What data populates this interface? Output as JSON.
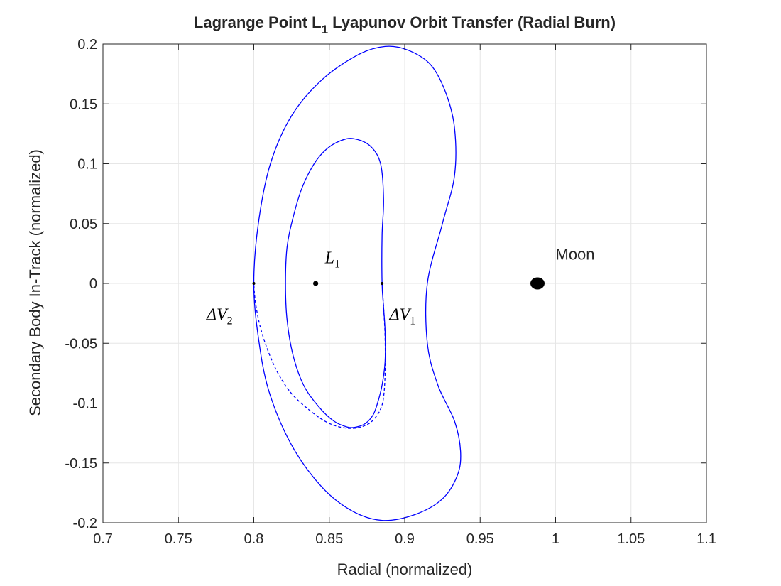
{
  "chart_data": {
    "type": "line",
    "title": {
      "prefix": "Lagrange Point L",
      "subscript": "1",
      "suffix": " Lyapunov Orbit Transfer (Radial Burn)"
    },
    "xlabel": "Radial (normalized)",
    "ylabel": "Secondary Body In-Track (normalized)",
    "xlim": [
      0.7,
      1.1
    ],
    "ylim": [
      -0.2,
      0.2
    ],
    "xticks": [
      0.7,
      0.75,
      0.8,
      0.85,
      0.9,
      0.95,
      1,
      1.05,
      1.1
    ],
    "xtick_labels": [
      "0.7",
      "0.75",
      "0.8",
      "0.85",
      "0.9",
      "0.95",
      "1",
      "1.05",
      "1.1"
    ],
    "yticks": [
      -0.2,
      -0.15,
      -0.1,
      -0.05,
      0,
      0.05,
      0.1,
      0.15,
      0.2
    ],
    "ytick_labels": [
      "-0.2",
      "-0.15",
      "-0.1",
      "-0.05",
      "0",
      "0.05",
      "0.1",
      "0.15",
      "0.2"
    ],
    "grid": true,
    "colors": {
      "orbit": "#0000ff",
      "marker": "#000000",
      "grid": "#e6e6e6",
      "axis": "#262626"
    },
    "series": [
      {
        "style": "solid",
        "closed": true,
        "x": [
          0.8,
          0.803,
          0.811,
          0.825,
          0.845,
          0.869,
          0.887,
          0.902,
          0.917,
          0.927,
          0.933,
          0.933,
          0.925,
          0.915,
          0.915,
          0.922,
          0.933,
          0.937,
          0.935,
          0.925,
          0.907,
          0.885,
          0.865,
          0.845,
          0.825,
          0.81,
          0.803
        ],
        "y": [
          0.0,
          0.05,
          0.1,
          0.14,
          0.17,
          0.191,
          0.198,
          0.195,
          0.183,
          0.16,
          0.13,
          0.09,
          0.05,
          0.0,
          -0.05,
          -0.085,
          -0.115,
          -0.14,
          -0.16,
          -0.18,
          -0.193,
          -0.198,
          -0.19,
          -0.17,
          -0.135,
          -0.09,
          -0.045
        ]
      },
      {
        "style": "solid",
        "closed": true,
        "x": [
          0.885,
          0.885,
          0.886,
          0.884,
          0.877,
          0.866,
          0.857,
          0.848,
          0.84,
          0.832,
          0.826,
          0.822,
          0.821,
          0.822,
          0.826,
          0.833,
          0.843,
          0.853,
          0.862,
          0.868,
          0.874,
          0.879,
          0.882,
          0.885,
          0.887,
          0.887,
          0.886
        ],
        "y": [
          0.0,
          0.04,
          0.07,
          0.1,
          0.115,
          0.121,
          0.119,
          0.112,
          0.1,
          0.08,
          0.055,
          0.03,
          0.0,
          -0.03,
          -0.06,
          -0.085,
          -0.103,
          -0.115,
          -0.12,
          -0.12,
          -0.117,
          -0.11,
          -0.1,
          -0.085,
          -0.065,
          -0.04,
          -0.02
        ]
      },
      {
        "style": "dashed",
        "closed": false,
        "x": [
          0.885,
          0.886,
          0.887,
          0.887,
          0.886,
          0.884,
          0.88,
          0.875,
          0.867,
          0.857,
          0.847,
          0.836,
          0.825,
          0.816,
          0.809,
          0.804,
          0.801,
          0.8
        ],
        "y": [
          0.0,
          -0.02,
          -0.045,
          -0.075,
          -0.095,
          -0.105,
          -0.113,
          -0.118,
          -0.121,
          -0.12,
          -0.115,
          -0.105,
          -0.092,
          -0.075,
          -0.055,
          -0.035,
          -0.015,
          0.0
        ]
      }
    ],
    "points": [
      {
        "name": "dv1-point",
        "x": 0.885,
        "y": 0,
        "kind": "dot"
      },
      {
        "name": "dv2-point",
        "x": 0.8,
        "y": 0,
        "kind": "dot"
      },
      {
        "name": "l1-point",
        "x": 0.841,
        "y": 0,
        "kind": "dot-large"
      },
      {
        "name": "moon-point",
        "x": 0.988,
        "y": 0,
        "kind": "disc"
      }
    ],
    "annotations": {
      "l1": {
        "base": "L",
        "sub": "1",
        "x": 0.841,
        "y": 0.017
      },
      "dv1": {
        "base": "ΔV",
        "sub": "1",
        "x": 0.888,
        "y": -0.02
      },
      "dv2": {
        "base": "ΔV",
        "sub": "2",
        "x": 0.771,
        "y": -0.02
      },
      "moon": {
        "text": "Moon",
        "x": 1.0,
        "y": 0.017
      }
    }
  }
}
